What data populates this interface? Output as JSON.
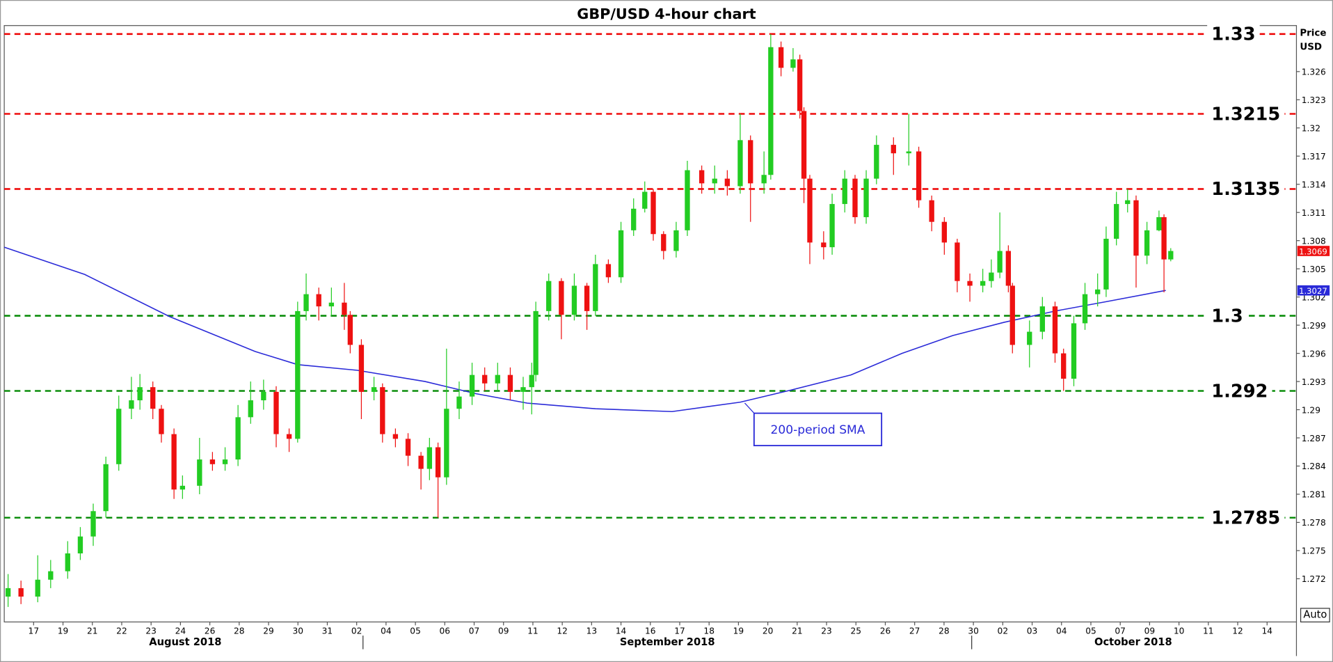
{
  "chart_data": {
    "type": "candlestick",
    "title": "GBP/USD 4-hour chart",
    "y_axis_label": [
      "Price",
      "USD"
    ],
    "auto_button": "Auto",
    "xlim": [
      -1,
      43
    ],
    "ylim": [
      1.2674,
      1.3309
    ],
    "yticks": [
      1.272,
      1.275,
      1.278,
      1.281,
      1.284,
      1.287,
      1.29,
      1.293,
      1.296,
      1.299,
      1.302,
      1.305,
      1.308,
      1.311,
      1.314,
      1.317,
      1.32,
      1.323,
      1.326
    ],
    "xticks": [
      {
        "value": 0,
        "label": "17"
      },
      {
        "value": 1,
        "label": "19"
      },
      {
        "value": 2,
        "label": "21"
      },
      {
        "value": 3,
        "label": "22"
      },
      {
        "value": 4,
        "label": "23"
      },
      {
        "value": 5,
        "label": "24"
      },
      {
        "value": 6,
        "label": "26"
      },
      {
        "value": 7,
        "label": "28"
      },
      {
        "value": 8,
        "label": "29"
      },
      {
        "value": 9,
        "label": "30"
      },
      {
        "value": 10,
        "label": "31"
      },
      {
        "value": 11,
        "label": "02"
      },
      {
        "value": 12,
        "label": "04"
      },
      {
        "value": 13,
        "label": "05"
      },
      {
        "value": 14,
        "label": "06"
      },
      {
        "value": 15,
        "label": "07"
      },
      {
        "value": 16,
        "label": "09"
      },
      {
        "value": 17,
        "label": "11"
      },
      {
        "value": 18,
        "label": "12"
      },
      {
        "value": 19,
        "label": "13"
      },
      {
        "value": 20,
        "label": "14"
      },
      {
        "value": 21,
        "label": "16"
      },
      {
        "value": 22,
        "label": "17"
      },
      {
        "value": 23,
        "label": "18"
      },
      {
        "value": 24,
        "label": "19"
      },
      {
        "value": 25,
        "label": "20"
      },
      {
        "value": 26,
        "label": "21"
      },
      {
        "value": 27,
        "label": "23"
      },
      {
        "value": 28,
        "label": "25"
      },
      {
        "value": 29,
        "label": "26"
      },
      {
        "value": 30,
        "label": "27"
      },
      {
        "value": 31,
        "label": "28"
      },
      {
        "value": 32,
        "label": "30"
      },
      {
        "value": 33,
        "label": "02"
      },
      {
        "value": 34,
        "label": "03"
      },
      {
        "value": 35,
        "label": "04"
      },
      {
        "value": 36,
        "label": "05"
      },
      {
        "value": 37,
        "label": "07"
      },
      {
        "value": 38,
        "label": "09"
      },
      {
        "value": 39,
        "label": "10"
      },
      {
        "value": 40,
        "label": "11"
      },
      {
        "value": 41,
        "label": "12"
      },
      {
        "value": 42,
        "label": "14"
      }
    ],
    "months": [
      "August 2018",
      "September 2018",
      "October 2018"
    ],
    "candles": {
      "up_color": "#22cc22",
      "down_color": "#ee1111",
      "x": [
        -0.87,
        -0.43,
        0.14,
        0.58,
        1.16,
        1.59,
        2.03,
        2.46,
        2.9,
        3.33,
        3.62,
        4.06,
        4.35,
        4.78,
        5.07,
        5.65,
        6.09,
        6.52,
        6.96,
        7.39,
        7.83,
        8.26,
        8.7,
        8.99,
        9.28,
        9.71,
        10.14,
        10.58,
        10.78,
        11.16,
        11.59,
        11.88,
        12.32,
        12.75,
        13.19,
        13.48,
        13.77,
        14.06,
        14.49,
        14.93,
        15.36,
        15.8,
        16.23,
        16.67,
        16.96,
        17.1,
        17.54,
        17.97,
        18.41,
        18.84,
        19.13,
        19.57,
        20,
        20.43,
        20.81,
        21.1,
        21.45,
        21.88,
        22.26,
        22.75,
        23.19,
        23.62,
        24.06,
        24.41,
        24.87,
        25.1,
        25.45,
        25.86,
        26.09,
        26.23,
        26.43,
        26.9,
        27.19,
        27.62,
        27.97,
        28.35,
        28.7,
        29.28,
        29.8,
        30.14,
        30.58,
        31.01,
        31.45,
        31.88,
        32.32,
        32.61,
        32.9,
        33.19,
        33.33,
        33.91,
        34.35,
        34.78,
        35.07,
        35.42,
        35.8,
        36.23,
        36.52,
        36.87,
        37.25,
        37.54,
        37.91,
        38.32,
        38.49,
        38.72
      ],
      "open": [
        1.2701,
        1.271,
        1.2701,
        1.2719,
        1.2728,
        1.2747,
        1.2765,
        1.2792,
        1.2842,
        1.2901,
        1.291,
        1.2924,
        1.2901,
        1.2874,
        1.2815,
        1.2819,
        1.2847,
        1.2842,
        1.2847,
        1.2892,
        1.291,
        1.2919,
        1.2874,
        1.2869,
        1.3005,
        1.3023,
        1.301,
        1.3014,
        1.3001,
        1.2969,
        1.2919,
        1.2924,
        1.2874,
        1.2869,
        1.2851,
        1.2837,
        1.286,
        1.2828,
        1.2901,
        1.2914,
        1.2937,
        1.2928,
        1.2937,
        1.2919,
        1.2924,
        1.2937,
        1.3005,
        1.3037,
        1.3001,
        1.3032,
        1.3005,
        1.3055,
        1.3041,
        1.3091,
        1.3114,
        1.3132,
        1.3087,
        1.3069,
        1.3091,
        1.3155,
        1.3141,
        1.3146,
        1.3138,
        1.3187,
        1.3141,
        1.315,
        1.3286,
        1.3264,
        1.3273,
        1.3218,
        1.3146,
        1.3078,
        1.3073,
        1.3119,
        1.3146,
        1.3105,
        1.3146,
        1.3182,
        1.3173,
        1.3175,
        1.3123,
        1.31,
        1.3078,
        1.3037,
        1.3032,
        1.3037,
        1.3046,
        1.3069,
        1.3032,
        1.2969,
        1.2983,
        1.301,
        1.296,
        1.2933,
        1.2992,
        1.3023,
        1.3028,
        1.3082,
        1.3119,
        1.3123,
        1.3064,
        1.3091,
        1.3105,
        1.306
      ],
      "high": [
        1.2725,
        1.2718,
        1.2745,
        1.274,
        1.276,
        1.2775,
        1.28,
        1.285,
        1.2915,
        1.2935,
        1.2938,
        1.293,
        1.2905,
        1.288,
        1.283,
        1.287,
        1.2855,
        1.286,
        1.2905,
        1.293,
        1.2932,
        1.2925,
        1.288,
        1.3015,
        1.3045,
        1.303,
        1.303,
        1.3035,
        1.3005,
        1.2975,
        1.2935,
        1.2928,
        1.288,
        1.2875,
        1.2855,
        1.287,
        1.2865,
        1.2965,
        1.293,
        1.295,
        1.2945,
        1.295,
        1.2945,
        1.2935,
        1.295,
        1.3015,
        1.3045,
        1.304,
        1.3045,
        1.3035,
        1.3065,
        1.306,
        1.31,
        1.3125,
        1.3143,
        1.3135,
        1.309,
        1.31,
        1.3165,
        1.316,
        1.316,
        1.3155,
        1.3215,
        1.3192,
        1.3175,
        1.33,
        1.3292,
        1.3285,
        1.3278,
        1.3222,
        1.315,
        1.309,
        1.313,
        1.3155,
        1.315,
        1.3155,
        1.3192,
        1.319,
        1.3215,
        1.318,
        1.3128,
        1.3105,
        1.3082,
        1.3045,
        1.305,
        1.306,
        1.311,
        1.3075,
        1.3035,
        1.2995,
        1.302,
        1.3015,
        1.2965,
        1.3,
        1.3035,
        1.3045,
        1.3095,
        1.3132,
        1.3135,
        1.3128,
        1.31,
        1.3112,
        1.3108,
        1.3072
      ],
      "low": [
        1.269,
        1.2693,
        1.2695,
        1.271,
        1.272,
        1.274,
        1.2755,
        1.2785,
        1.2835,
        1.289,
        1.29,
        1.289,
        1.2865,
        1.2805,
        1.2805,
        1.281,
        1.2835,
        1.2835,
        1.284,
        1.2885,
        1.29,
        1.286,
        1.2855,
        1.2865,
        1.2995,
        1.2995,
        1.3,
        1.2985,
        1.296,
        1.289,
        1.291,
        1.2865,
        1.286,
        1.284,
        1.2815,
        1.2825,
        1.2785,
        1.282,
        1.289,
        1.2905,
        1.292,
        1.292,
        1.291,
        1.29,
        1.2895,
        1.293,
        1.2995,
        1.2975,
        1.2995,
        1.2985,
        1.3,
        1.3035,
        1.3035,
        1.3085,
        1.311,
        1.308,
        1.306,
        1.3062,
        1.3085,
        1.313,
        1.313,
        1.3128,
        1.313,
        1.31,
        1.313,
        1.3145,
        1.3255,
        1.326,
        1.321,
        1.312,
        1.3055,
        1.306,
        1.3065,
        1.311,
        1.3098,
        1.3098,
        1.314,
        1.315,
        1.316,
        1.3115,
        1.309,
        1.3065,
        1.3025,
        1.3015,
        1.3025,
        1.303,
        1.304,
        1.3025,
        1.296,
        1.2945,
        1.2975,
        1.295,
        1.292,
        1.2925,
        1.2985,
        1.301,
        1.302,
        1.3075,
        1.311,
        1.303,
        1.3055,
        1.309,
        1.3025,
        1.3058
      ],
      "close": [
        1.271,
        1.2701,
        1.2719,
        1.2728,
        1.2747,
        1.2765,
        1.2792,
        1.2842,
        1.2901,
        1.291,
        1.2924,
        1.2901,
        1.2874,
        1.2815,
        1.2819,
        1.2847,
        1.2842,
        1.2847,
        1.2892,
        1.291,
        1.2919,
        1.2874,
        1.2869,
        1.3005,
        1.3023,
        1.301,
        1.3014,
        1.3001,
        1.2969,
        1.2919,
        1.2924,
        1.2874,
        1.2869,
        1.2851,
        1.2837,
        1.286,
        1.2828,
        1.2901,
        1.2914,
        1.2937,
        1.2928,
        1.2937,
        1.2919,
        1.2924,
        1.2937,
        1.3005,
        1.3037,
        1.3001,
        1.3032,
        1.3005,
        1.3055,
        1.3041,
        1.3091,
        1.3114,
        1.3132,
        1.3087,
        1.3069,
        1.3091,
        1.3155,
        1.3141,
        1.3146,
        1.3138,
        1.3187,
        1.3141,
        1.315,
        1.3286,
        1.3264,
        1.3273,
        1.3218,
        1.3146,
        1.3078,
        1.3073,
        1.3119,
        1.3146,
        1.3105,
        1.3146,
        1.3182,
        1.3173,
        1.3175,
        1.3123,
        1.31,
        1.3078,
        1.3037,
        1.3032,
        1.3037,
        1.3046,
        1.3069,
        1.3032,
        1.2969,
        1.2983,
        1.301,
        1.296,
        1.2933,
        1.2992,
        1.3023,
        1.3028,
        1.3082,
        1.3119,
        1.3123,
        1.3064,
        1.3091,
        1.3105,
        1.306,
        1.3069
      ]
    },
    "sma": {
      "name": "200-period SMA",
      "color": "#2a2ad8",
      "last_value": 1.3027,
      "x": [
        -1,
        1.74,
        4.64,
        7.54,
        8.99,
        11.01,
        13.33,
        15.07,
        16.81,
        19.13,
        21.74,
        24.06,
        25.8,
        27.83,
        29.57,
        31.3,
        33.04,
        34.78,
        36.52,
        38.55
      ],
      "values": [
        1.3073,
        1.3044,
        1.2999,
        1.2962,
        1.2948,
        1.2942,
        1.293,
        1.2917,
        1.2907,
        1.2901,
        1.2898,
        1.2908,
        1.2921,
        1.2937,
        1.296,
        1.2979,
        1.2993,
        1.3005,
        1.3015,
        1.3027
      ]
    },
    "last_price": {
      "value": 1.3069,
      "color": "#ee1111"
    },
    "levels": [
      {
        "value": 1.33,
        "color": "#ee0000"
      },
      {
        "value": 1.3215,
        "color": "#ee0000"
      },
      {
        "value": 1.3135,
        "color": "#ee0000"
      },
      {
        "value": 1.3,
        "color": "#008800"
      },
      {
        "value": 1.292,
        "color": "#008800"
      },
      {
        "value": 1.2785,
        "color": "#008800"
      }
    ]
  }
}
